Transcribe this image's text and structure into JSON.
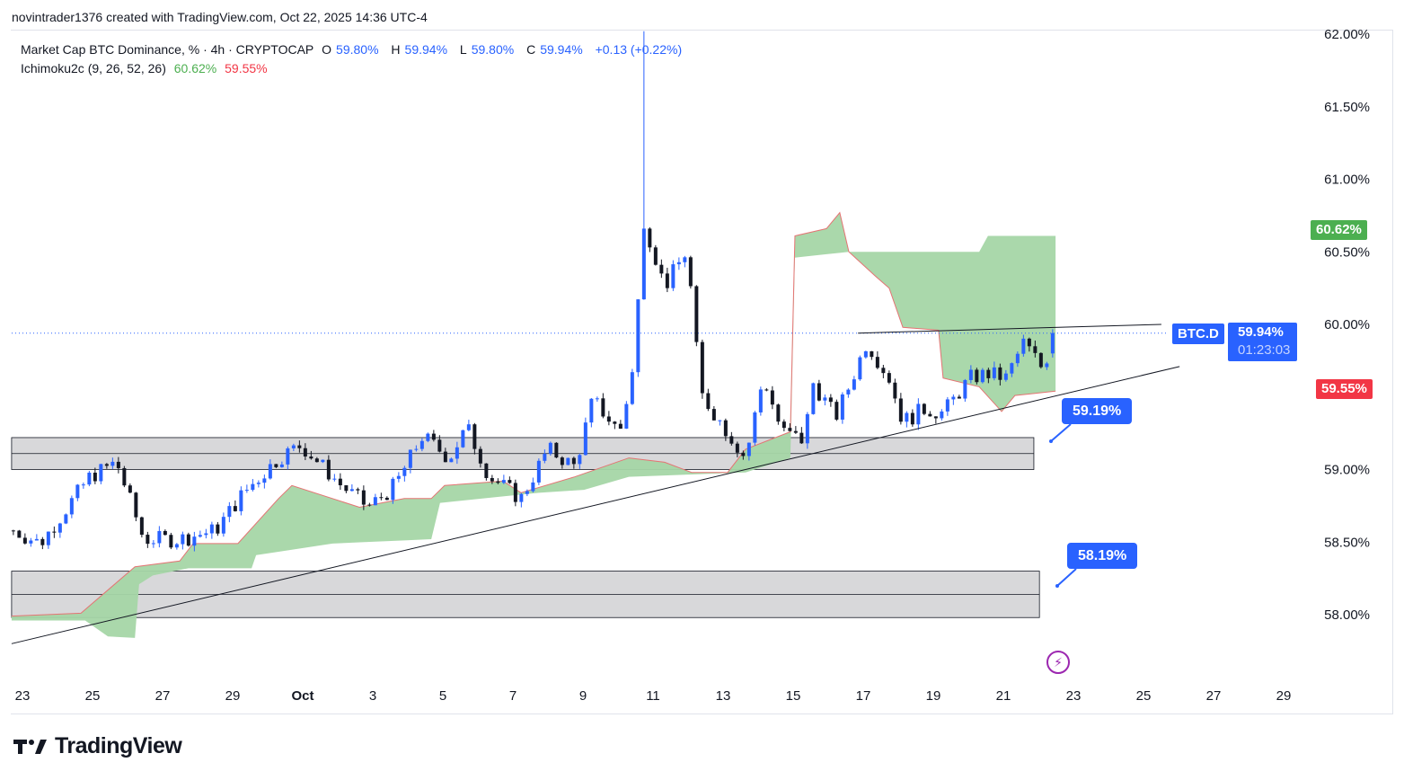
{
  "attribution": "novintrader1376 created with TradingView.com, Oct 22, 2025 14:36 UTC-4",
  "legend": {
    "symbol": "Market Cap BTC Dominance, % · 4h · CRYPTOCAP",
    "o_label": "O",
    "o": "59.80%",
    "h_label": "H",
    "h": "59.94%",
    "l_label": "L",
    "l": "59.80%",
    "c_label": "C",
    "c": "59.94%",
    "change": "+0.13 (+0.22%)",
    "indicator": "Ichimoku2c (9, 26, 52, 26)",
    "ind_a": "60.62%",
    "ind_b": "59.55%"
  },
  "tags": {
    "ticker": "BTC.D",
    "price": "59.94%",
    "countdown": "01:23:03",
    "span_a": "60.62%",
    "span_b": "59.55%"
  },
  "callouts": [
    "59.19%",
    "58.19%"
  ],
  "logo": "TradingView",
  "colors": {
    "up": "#2962ff",
    "down": "#131722",
    "cloud": "#a5d6a7",
    "cloud_edge": "#e57373",
    "green": "#4caf50",
    "red": "#f23645",
    "blue": "#2962ff"
  },
  "chart_data": {
    "type": "candlestick",
    "timeframe": "4h",
    "x_unit": "days since Sep 23, 2025",
    "x_ticks": [
      {
        "day": 0,
        "label": "23"
      },
      {
        "day": 2,
        "label": "25"
      },
      {
        "day": 4,
        "label": "27"
      },
      {
        "day": 6,
        "label": "29"
      },
      {
        "day": 8,
        "label": "Oct"
      },
      {
        "day": 10,
        "label": "3"
      },
      {
        "day": 12,
        "label": "5"
      },
      {
        "day": 14,
        "label": "7"
      },
      {
        "day": 16,
        "label": "9"
      },
      {
        "day": 18,
        "label": "11"
      },
      {
        "day": 20,
        "label": "13"
      },
      {
        "day": 22,
        "label": "15"
      },
      {
        "day": 24,
        "label": "17"
      },
      {
        "day": 26,
        "label": "19"
      },
      {
        "day": 28,
        "label": "21"
      },
      {
        "day": 30,
        "label": "23"
      },
      {
        "day": 32,
        "label": "25"
      },
      {
        "day": 34,
        "label": "27"
      },
      {
        "day": 36,
        "label": "29"
      }
    ],
    "y_ticks": [
      "62.00%",
      "61.50%",
      "61.00%",
      "60.50%",
      "60.00%",
      "59.00%",
      "58.50%",
      "58.00%"
    ],
    "y_tick_values": [
      62.0,
      61.5,
      61.0,
      60.5,
      60.0,
      59.0,
      58.5,
      58.0
    ],
    "ylim": [
      57.6,
      62.0
    ],
    "price_path": [
      [
        -0.26,
        58.58
      ],
      [
        0.51,
        58.49
      ],
      [
        1.92,
        58.95
      ],
      [
        2.69,
        59.05
      ],
      [
        3.46,
        58.52
      ],
      [
        4.49,
        58.52
      ],
      [
        5.51,
        58.58
      ],
      [
        6.28,
        58.83
      ],
      [
        7.31,
        59.08
      ],
      [
        7.95,
        59.17
      ],
      [
        9.1,
        58.89
      ],
      [
        9.87,
        58.74
      ],
      [
        10.64,
        58.89
      ],
      [
        11.41,
        59.23
      ],
      [
        12.18,
        59.08
      ],
      [
        12.69,
        59.29
      ],
      [
        13.33,
        58.95
      ],
      [
        14.23,
        58.8
      ],
      [
        15.0,
        59.14
      ],
      [
        15.77,
        59.02
      ],
      [
        16.28,
        59.48
      ],
      [
        17.05,
        59.26
      ],
      [
        17.44,
        59.7
      ],
      [
        17.74,
        60.72
      ],
      [
        18.33,
        60.26
      ],
      [
        18.97,
        60.51
      ],
      [
        19.36,
        59.52
      ],
      [
        20.13,
        59.26
      ],
      [
        20.64,
        59.08
      ],
      [
        21.15,
        59.64
      ],
      [
        21.67,
        59.26
      ],
      [
        22.31,
        59.2
      ],
      [
        22.56,
        59.6
      ],
      [
        23.21,
        59.36
      ],
      [
        23.59,
        59.57
      ],
      [
        24.1,
        59.88
      ],
      [
        24.74,
        59.63
      ],
      [
        25.13,
        59.33
      ],
      [
        25.77,
        59.42
      ],
      [
        26.28,
        59.39
      ],
      [
        27.05,
        59.63
      ],
      [
        27.56,
        59.66
      ],
      [
        28.08,
        59.63
      ],
      [
        28.59,
        59.88
      ],
      [
        29.1,
        59.7
      ],
      [
        29.56,
        59.94
      ]
    ],
    "spike_high": {
      "day": 17.74,
      "price": 62.02
    },
    "last": {
      "open": 59.8,
      "high": 59.94,
      "low": 59.8,
      "close": 59.94
    },
    "cloud_span_b": [
      [
        -0.31,
        57.99
      ],
      [
        1.67,
        58.01
      ],
      [
        3.21,
        58.33
      ],
      [
        4.49,
        58.37
      ],
      [
        4.87,
        58.49
      ],
      [
        6.15,
        58.49
      ],
      [
        7.31,
        58.8
      ],
      [
        7.69,
        58.89
      ],
      [
        9.62,
        58.74
      ],
      [
        10.9,
        58.8
      ],
      [
        11.67,
        58.8
      ],
      [
        12.05,
        58.89
      ],
      [
        13.72,
        58.92
      ],
      [
        14.23,
        58.84
      ],
      [
        15.77,
        58.95
      ],
      [
        17.31,
        59.08
      ],
      [
        18.33,
        59.05
      ],
      [
        19.1,
        58.98
      ],
      [
        20.13,
        58.98
      ],
      [
        20.64,
        59.14
      ],
      [
        21.92,
        59.26
      ],
      [
        22.05,
        60.61
      ],
      [
        22.95,
        60.66
      ],
      [
        23.33,
        60.77
      ],
      [
        23.59,
        60.5
      ],
      [
        24.36,
        60.33
      ],
      [
        24.74,
        60.25
      ],
      [
        25.13,
        59.98
      ],
      [
        26.15,
        59.96
      ],
      [
        26.28,
        59.63
      ],
      [
        27.31,
        59.57
      ],
      [
        27.95,
        59.4
      ],
      [
        28.33,
        59.51
      ],
      [
        29.49,
        59.54
      ]
    ],
    "cloud_span_a": [
      [
        -0.31,
        57.96
      ],
      [
        1.79,
        57.96
      ],
      [
        2.44,
        57.85
      ],
      [
        3.21,
        57.84
      ],
      [
        3.33,
        58.21
      ],
      [
        3.72,
        58.27
      ],
      [
        4.74,
        58.32
      ],
      [
        6.54,
        58.32
      ],
      [
        6.67,
        58.41
      ],
      [
        8.85,
        58.49
      ],
      [
        11.67,
        58.52
      ],
      [
        11.92,
        58.77
      ],
      [
        14.74,
        58.84
      ],
      [
        16.03,
        58.86
      ],
      [
        17.31,
        58.95
      ],
      [
        20.64,
        58.98
      ],
      [
        21.92,
        59.08
      ],
      [
        22.05,
        60.46
      ],
      [
        23.59,
        60.5
      ],
      [
        27.31,
        60.5
      ],
      [
        27.56,
        60.61
      ],
      [
        29.49,
        60.61
      ]
    ],
    "trendlines": [
      {
        "name": "rising-support",
        "from": [
          -0.31,
          57.8
        ],
        "to": [
          33.03,
          59.71
        ]
      },
      {
        "name": "resistance",
        "from": [
          23.85,
          59.94
        ],
        "to": [
          32.51,
          60.0
        ]
      }
    ],
    "zones": [
      {
        "name": "zone-upper",
        "from_day": -0.31,
        "to_day": 28.87,
        "top": 59.22,
        "bottom": 59.0,
        "mid": 59.11
      },
      {
        "name": "zone-lower",
        "from_day": -0.31,
        "to_day": 29.03,
        "top": 58.3,
        "bottom": 57.98,
        "mid": 58.14
      }
    ],
    "annotations": [
      {
        "label": "59.19%",
        "day": 29.5,
        "price": 59.19
      },
      {
        "label": "58.19%",
        "day": 29.7,
        "price": 58.19
      }
    ],
    "current_price": 59.94
  }
}
